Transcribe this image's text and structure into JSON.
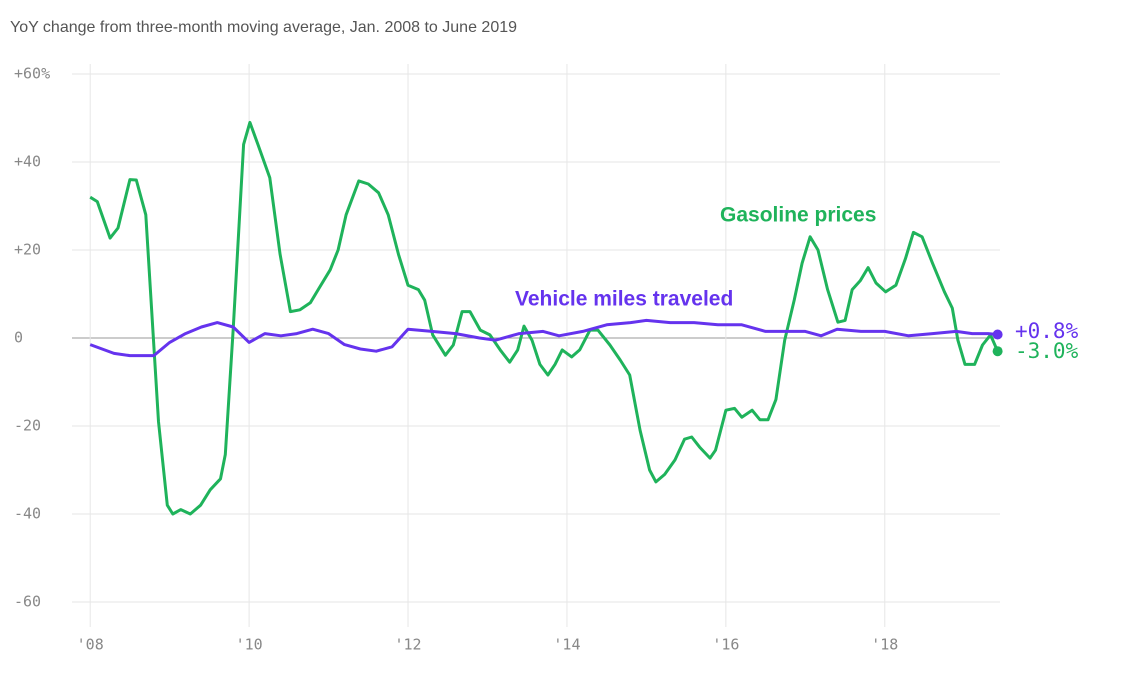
{
  "chart_data": {
    "type": "line",
    "subtitle": "YoY change from three-month moving average, Jan. 2008 to June 2019",
    "xlim": [
      2007.62,
      2019.45
    ],
    "xticks": [
      {
        "value": 2008,
        "label": "'08"
      },
      {
        "value": 2010,
        "label": "'10"
      },
      {
        "value": 2012,
        "label": "'12"
      },
      {
        "value": 2014,
        "label": "'14"
      },
      {
        "value": 2016,
        "label": "'16"
      },
      {
        "value": 2018,
        "label": "'18"
      }
    ],
    "ylim": [
      -60,
      60
    ],
    "yticks": [
      {
        "value": 60,
        "label": "+60%"
      },
      {
        "value": 40,
        "label": "+40"
      },
      {
        "value": 20,
        "label": "+20"
      },
      0,
      -20,
      -40,
      -60
    ],
    "grid": true,
    "series": [
      {
        "name": "Gasoline prices",
        "color": "#1fb35b",
        "end_label": "-3.0%",
        "x": [
          2008.0,
          2008.09,
          2008.25,
          2008.35,
          2008.5,
          2008.58,
          2008.7,
          2008.86,
          2008.97,
          2009.04,
          2009.14,
          2009.26,
          2009.39,
          2009.51,
          2009.64,
          2009.7,
          2009.8,
          2009.93,
          2010.01,
          2010.11,
          2010.26,
          2010.39,
          2010.52,
          2010.64,
          2010.77,
          2010.87,
          2011.02,
          2011.12,
          2011.22,
          2011.38,
          2011.5,
          2011.63,
          2011.75,
          2011.88,
          2012.0,
          2012.13,
          2012.21,
          2012.31,
          2012.47,
          2012.57,
          2012.68,
          2012.78,
          2012.91,
          2013.03,
          2013.16,
          2013.28,
          2013.38,
          2013.46,
          2013.56,
          2013.66,
          2013.76,
          2013.85,
          2013.94,
          2014.06,
          2014.16,
          2014.29,
          2014.39,
          2014.54,
          2014.67,
          2014.79,
          2014.92,
          2015.04,
          2015.12,
          2015.23,
          2015.36,
          2015.48,
          2015.57,
          2015.67,
          2015.8,
          2015.87,
          2016.0,
          2016.11,
          2016.2,
          2016.33,
          2016.43,
          2016.53,
          2016.63,
          2016.74,
          2016.86,
          2016.96,
          2017.06,
          2017.16,
          2017.28,
          2017.41,
          2017.5,
          2017.59,
          2017.69,
          2017.79,
          2017.89,
          2018.01,
          2018.14,
          2018.26,
          2018.36,
          2018.47,
          2018.6,
          2018.75,
          2018.85,
          2018.92,
          2019.01,
          2019.13,
          2019.23,
          2019.33,
          2019.42
        ],
        "values": [
          32,
          31,
          22.7,
          25,
          36,
          35.9,
          28,
          -19,
          -38,
          -40,
          -39,
          -40,
          -38,
          -34.5,
          -32,
          -26.5,
          2,
          44,
          49,
          44,
          36.4,
          19,
          6,
          6.4,
          8,
          11,
          15.5,
          20,
          28,
          35.7,
          35,
          33,
          28,
          19,
          12,
          11,
          8.6,
          0.7,
          -3.9,
          -1.6,
          6,
          6,
          1.8,
          0.7,
          -2.7,
          -5.5,
          -2.7,
          2.7,
          -0.5,
          -6,
          -8.4,
          -6,
          -2.7,
          -4.3,
          -2.7,
          1.8,
          1.8,
          -1.6,
          -5,
          -8.4,
          -21,
          -30,
          -32.7,
          -31,
          -27.7,
          -23,
          -22.5,
          -24.8,
          -27.3,
          -25.5,
          -16.4,
          -16,
          -18,
          -16.4,
          -18.6,
          -18.6,
          -14,
          -0.5,
          8.6,
          17,
          23,
          20,
          11,
          3.6,
          4,
          11,
          13,
          16,
          12.5,
          10.5,
          12,
          18,
          24,
          23,
          17,
          10.5,
          6.8,
          -0.5,
          -6,
          -6,
          -1.6,
          0.7,
          -3.0
        ]
      },
      {
        "name": "Vehicle miles traveled",
        "color": "#6533ee",
        "end_label": "+0.8%",
        "x": [
          2008.0,
          2008.15,
          2008.3,
          2008.5,
          2008.8,
          2009.0,
          2009.2,
          2009.4,
          2009.6,
          2009.8,
          2010.0,
          2010.2,
          2010.4,
          2010.6,
          2010.8,
          2011.0,
          2011.2,
          2011.4,
          2011.6,
          2011.8,
          2012.0,
          2012.3,
          2012.6,
          2012.9,
          2013.1,
          2013.4,
          2013.7,
          2013.9,
          2014.2,
          2014.5,
          2014.8,
          2015.0,
          2015.3,
          2015.6,
          2015.9,
          2016.2,
          2016.5,
          2016.8,
          2017.0,
          2017.2,
          2017.4,
          2017.7,
          2018.0,
          2018.3,
          2018.6,
          2018.9,
          2019.1,
          2019.3,
          2019.42
        ],
        "values": [
          -1.5,
          -2.5,
          -3.5,
          -4,
          -4,
          -1,
          1,
          2.5,
          3.5,
          2.5,
          -1,
          1,
          0.5,
          1,
          2,
          1,
          -1.5,
          -2.5,
          -3,
          -2,
          2,
          1.5,
          1,
          0,
          -0.5,
          1,
          1.5,
          0.5,
          1.5,
          3,
          3.5,
          4,
          3.5,
          3.5,
          3,
          3,
          1.5,
          1.5,
          1.5,
          0.5,
          2,
          1.5,
          1.5,
          0.5,
          1,
          1.5,
          1,
          1,
          0.8
        ]
      }
    ]
  }
}
